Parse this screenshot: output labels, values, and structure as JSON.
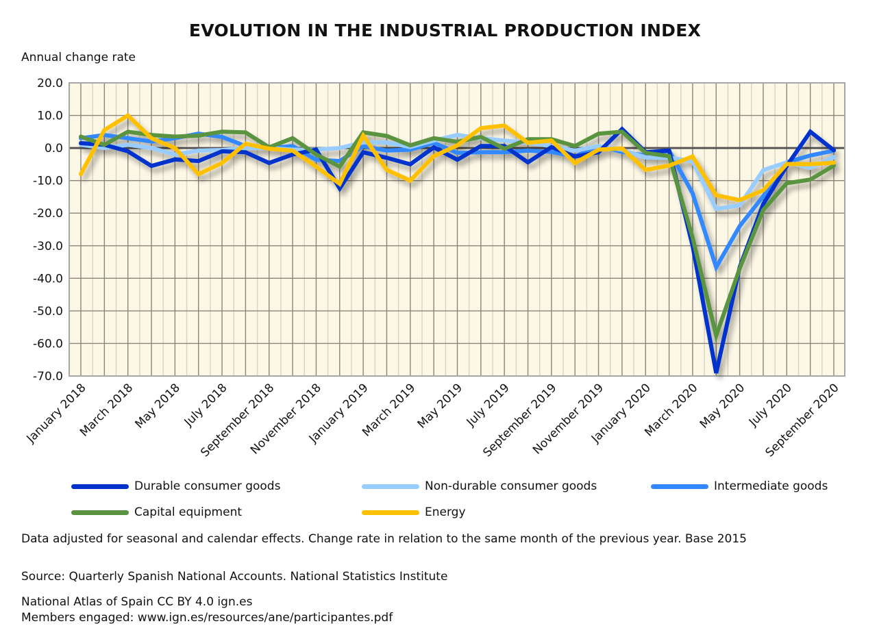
{
  "chart_data": {
    "type": "line",
    "title": "EVOLUTION IN THE INDUSTRIAL PRODUCTION INDEX",
    "ylabel": "Annual change rate",
    "xlabel": "",
    "ylim": [
      -70,
      20
    ],
    "yticks": [
      20,
      10,
      0,
      -10,
      -20,
      -30,
      -40,
      -50,
      -60,
      -70
    ],
    "ytick_labels": [
      "20.0",
      "10.0",
      "0.0",
      "-10.0",
      "-20.0",
      "-30.0",
      "-40.0",
      "-50.0",
      "-60.0",
      "-70.0"
    ],
    "grid": true,
    "legend_position": "bottom",
    "x": [
      "January 2018",
      "February 2018",
      "March 2018",
      "April 2018",
      "May 2018",
      "June 2018",
      "July 2018",
      "August 2018",
      "September 2018",
      "October 2018",
      "November 2018",
      "December 2018",
      "January 2019",
      "February 2019",
      "March 2019",
      "April 2019",
      "May 2019",
      "June 2019",
      "July 2019",
      "August 2019",
      "September 2019",
      "October 2019",
      "November 2019",
      "December 2019",
      "January 2020",
      "February 2020",
      "March 2020",
      "April 2020",
      "May 2020",
      "June 2020",
      "July 2020",
      "August 2020",
      "September 2020"
    ],
    "xtick_labels": [
      "January 2018",
      "March 2018",
      "May 2018",
      "July 2018",
      "September 2018",
      "November 2018",
      "January 2019",
      "March 2019",
      "May 2019",
      "July 2019",
      "September 2019",
      "November 2019",
      "January 2020",
      "March 2020",
      "May 2020",
      "July 2020",
      "September 2020"
    ],
    "series": [
      {
        "name": "Durable consumer goods",
        "color": "#0033cc",
        "values": [
          1.5,
          1.0,
          -1.0,
          -5.5,
          -3.5,
          -4.0,
          -1.0,
          -1.3,
          -4.6,
          -2.0,
          -0.5,
          -12.4,
          -1.3,
          -3.0,
          -5.0,
          0.2,
          -3.6,
          0.6,
          0.6,
          -4.4,
          0.3,
          -2.6,
          -1.3,
          5.8,
          -1.3,
          -0.8,
          -30.0,
          -69.1,
          -36.6,
          -17.2,
          -5.5,
          5.0,
          -0.7
        ]
      },
      {
        "name": "Non-durable consumer goods",
        "color": "#99ccff",
        "values": [
          1.0,
          0.0,
          1.0,
          0.0,
          -2.0,
          -0.8,
          -0.6,
          0.0,
          0.0,
          -0.5,
          -0.5,
          0.0,
          1.7,
          1.7,
          0.3,
          2.3,
          4.0,
          3.0,
          2.3,
          1.6,
          0.6,
          -0.8,
          0.6,
          -0.5,
          -2.9,
          -3.0,
          -4.0,
          -18.7,
          -17.6,
          -6.8,
          -4.4,
          -6.1,
          -2.8
        ]
      },
      {
        "name": "Intermediate goods",
        "color": "#3388ff",
        "values": [
          3.0,
          4.0,
          3.0,
          2.0,
          3.0,
          4.4,
          3.4,
          0.6,
          0.0,
          0.6,
          -3.6,
          -4.0,
          0.6,
          -0.8,
          -0.5,
          1.6,
          -1.5,
          -1.3,
          -1.3,
          -0.8,
          -1.2,
          -2.6,
          0.6,
          -1.2,
          -2.3,
          -0.8,
          -13.9,
          -36.6,
          -24.0,
          -14.8,
          -4.4,
          -2.3,
          -0.8
        ]
      },
      {
        "name": "Capital equipment",
        "color": "#5a9440",
        "values": [
          3.5,
          1.0,
          5.0,
          4.0,
          3.5,
          3.8,
          5.0,
          4.8,
          0.2,
          3.0,
          -2.0,
          -5.7,
          4.8,
          3.7,
          0.8,
          3.0,
          1.9,
          3.4,
          -0.2,
          2.7,
          2.7,
          0.6,
          4.4,
          5.0,
          -1.5,
          -2.5,
          -27.5,
          -57.6,
          -37.0,
          -19.0,
          -10.8,
          -9.7,
          -5.4
        ]
      },
      {
        "name": "Energy",
        "color": "#ffc000",
        "values": [
          -8.0,
          5.5,
          10.0,
          3.0,
          0.0,
          -8.0,
          -4.6,
          1.3,
          -0.2,
          -0.8,
          -5.7,
          -11.0,
          3.8,
          -6.7,
          -10.0,
          -2.5,
          0.8,
          6.1,
          6.9,
          1.6,
          2.3,
          -4.6,
          -0.5,
          -0.1,
          -6.7,
          -5.4,
          -2.6,
          -14.5,
          -16.0,
          -13.0,
          -4.9,
          -5.0,
          -4.5
        ]
      }
    ]
  },
  "footer": {
    "note": "Data adjusted for seasonal and calendar effects. Change rate in relation to the same month of the previous year. Base 2015",
    "source": "Source: Quarterly Spanish National Accounts. National Statistics Institute",
    "atlas": "National Atlas of Spain CC BY 4.0 ign.es",
    "members": "Members engaged: www.ign.es/resources/ane/participantes.pdf"
  }
}
